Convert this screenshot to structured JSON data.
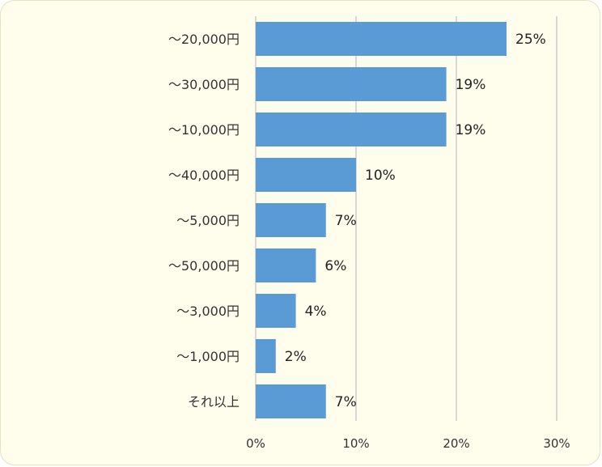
{
  "chart_data": {
    "type": "bar",
    "orientation": "horizontal",
    "categories": [
      "～20,000円",
      "～30,000円",
      "～10,000円",
      "～40,000円",
      "～5,000円",
      "～50,000円",
      "～3,000円",
      "～1,000円",
      "それ以上"
    ],
    "values": [
      25,
      19,
      19,
      10,
      7,
      6,
      4,
      2,
      7
    ],
    "value_labels": [
      "25%",
      "19%",
      "19%",
      "10%",
      "7%",
      "6%",
      "4%",
      "2%",
      "7%"
    ],
    "xlim": [
      0,
      30
    ],
    "xticks": [
      0,
      10,
      20,
      30
    ],
    "xtick_labels": [
      "0%",
      "10%",
      "20%",
      "30%"
    ],
    "grid": "vertical",
    "legend": "none",
    "colors": {
      "bar": "#5b9bd5",
      "grid": "#cccccc",
      "background": "#fffdeb"
    }
  }
}
